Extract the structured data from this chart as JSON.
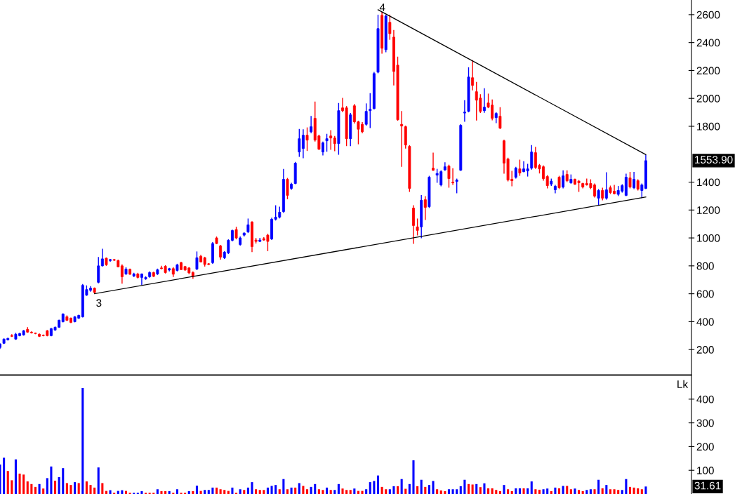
{
  "chart_data": [
    {
      "type": "candlestick",
      "categories": [
        null,
        null,
        null,
        null,
        null,
        null,
        null,
        null,
        null,
        null,
        null,
        null,
        null,
        null,
        null,
        null,
        null,
        null,
        null,
        null,
        null,
        null,
        null,
        null,
        null,
        null,
        null,
        null,
        null,
        null,
        null,
        null,
        null,
        null,
        null,
        null,
        null,
        null,
        null,
        null,
        null,
        null,
        null,
        null,
        null,
        null,
        null,
        null,
        null,
        null,
        null,
        null,
        null,
        null,
        null,
        null,
        null,
        null,
        null,
        null,
        null,
        null,
        null,
        null,
        null,
        null,
        null,
        null,
        null,
        null,
        null,
        null,
        null,
        null,
        null,
        null,
        null,
        null,
        null,
        null,
        null,
        null,
        null,
        null,
        null,
        null,
        null,
        null,
        null,
        null,
        null,
        null,
        null,
        null,
        null,
        null,
        null,
        null,
        null,
        null,
        null,
        null,
        null,
        null,
        null,
        null,
        null,
        null,
        null,
        null,
        null,
        null,
        null,
        null,
        null,
        null,
        null,
        null,
        null,
        null,
        null,
        null,
        null,
        null,
        null,
        null,
        null,
        null,
        null,
        null,
        null,
        null,
        null,
        null,
        null,
        null,
        null,
        null,
        null,
        null,
        null,
        null,
        null,
        null,
        null,
        null,
        null,
        null,
        null,
        null,
        null,
        null,
        null,
        null,
        null,
        null,
        null,
        null,
        null,
        null,
        null,
        null,
        null,
        null,
        null
      ],
      "ohlc": [
        [
          215,
          245,
          205,
          240
        ],
        [
          245,
          280,
          240,
          275
        ],
        [
          270,
          285,
          265,
          280
        ],
        [
          300,
          310,
          290,
          295
        ],
        [
          275,
          320,
          270,
          310
        ],
        [
          300,
          320,
          295,
          315
        ],
        [
          305,
          340,
          300,
          335
        ],
        [
          345,
          360,
          320,
          325
        ],
        [
          325,
          330,
          315,
          320
        ],
        [
          318,
          322,
          310,
          315
        ],
        [
          310,
          315,
          290,
          295
        ],
        [
          303,
          308,
          295,
          300
        ],
        [
          335,
          340,
          295,
          300
        ],
        [
          300,
          355,
          295,
          350
        ],
        [
          340,
          365,
          335,
          360
        ],
        [
          360,
          415,
          355,
          410
        ],
        [
          400,
          460,
          395,
          455
        ],
        [
          435,
          445,
          405,
          410
        ],
        [
          425,
          430,
          390,
          395
        ],
        [
          400,
          440,
          395,
          435
        ],
        [
          425,
          450,
          420,
          445
        ],
        [
          435,
          670,
          430,
          660
        ],
        [
          590,
          660,
          585,
          630
        ],
        [
          625,
          655,
          615,
          640
        ],
        [
          640,
          645,
          600,
          610
        ],
        [
          682,
          863,
          675,
          800
        ],
        [
          800,
          923,
          795,
          850
        ],
        [
          855,
          860,
          800,
          808
        ],
        [
          838,
          850,
          830,
          845
        ],
        [
          845,
          850,
          835,
          840
        ],
        [
          838,
          845,
          790,
          793
        ],
        [
          800,
          810,
          672,
          722
        ],
        [
          742,
          790,
          735,
          777
        ],
        [
          775,
          780,
          735,
          740
        ],
        [
          727,
          750,
          720,
          742
        ],
        [
          742,
          750,
          710,
          717
        ],
        [
          717,
          745,
          662,
          742
        ],
        [
          707,
          725,
          700,
          717
        ],
        [
          722,
          760,
          715,
          752
        ],
        [
          752,
          758,
          720,
          725
        ],
        [
          742,
          780,
          735,
          772
        ],
        [
          785,
          800,
          775,
          780
        ],
        [
          797,
          805,
          745,
          752
        ],
        [
          770,
          785,
          760,
          780
        ],
        [
          780,
          790,
          720,
          740
        ],
        [
          767,
          815,
          760,
          807
        ],
        [
          823,
          830,
          770,
          773
        ],
        [
          795,
          800,
          765,
          770
        ],
        [
          785,
          790,
          740,
          750
        ],
        [
          752,
          760,
          707,
          725
        ],
        [
          777,
          903,
          770,
          858
        ],
        [
          868,
          880,
          825,
          828
        ],
        [
          858,
          865,
          795,
          810
        ],
        [
          815,
          820,
          805,
          810
        ],
        [
          823,
          970,
          815,
          960
        ],
        [
          1000,
          1010,
          955,
          960
        ],
        [
          943,
          950,
          845,
          863
        ],
        [
          858,
          905,
          850,
          898
        ],
        [
          893,
          990,
          885,
          983
        ],
        [
          983,
          1060,
          975,
          1053
        ],
        [
          1060,
          1080,
          990,
          1000
        ],
        [
          953,
          1010,
          945,
          1000
        ],
        [
          1020,
          1040,
          1010,
          1035
        ],
        [
          1044,
          1139,
          1035,
          1094
        ],
        [
          1114,
          1120,
          898,
          938
        ],
        [
          985,
          1000,
          960,
          975
        ],
        [
          975,
          1000,
          970,
          985
        ],
        [
          995,
          1005,
          980,
          985
        ],
        [
          1020,
          1030,
          905,
          975
        ],
        [
          993,
          1145,
          985,
          1134
        ],
        [
          1134,
          1234,
          1125,
          1149
        ],
        [
          1149,
          1224,
          1140,
          1184
        ],
        [
          1189,
          1495,
          1180,
          1420
        ],
        [
          1420,
          1430,
          1277,
          1305
        ],
        [
          1355,
          1395,
          1345,
          1385
        ],
        [
          1390,
          1545,
          1385,
          1536
        ],
        [
          1616,
          1781,
          1581,
          1711
        ],
        [
          1641,
          1779,
          1571,
          1736
        ],
        [
          1736,
          1792,
          1623,
          1701
        ],
        [
          1761,
          1874,
          1750,
          1797
        ],
        [
          1857,
          1977,
          1690,
          1701
        ],
        [
          1731,
          1740,
          1630,
          1636
        ],
        [
          1616,
          1690,
          1591,
          1681
        ],
        [
          1696,
          1746,
          1618,
          1711
        ],
        [
          1731,
          1772,
          1631,
          1716
        ],
        [
          1716,
          1731,
          1621,
          1676
        ],
        [
          1676,
          1967,
          1596,
          1912
        ],
        [
          1932,
          2003,
          1900,
          1912
        ],
        [
          1932,
          1945,
          1658,
          1711
        ],
        [
          1711,
          1895,
          1658,
          1882
        ],
        [
          1947,
          1960,
          1820,
          1832
        ],
        [
          1832,
          1840,
          1671,
          1779
        ],
        [
          1814,
          1830,
          1750,
          1761
        ],
        [
          1814,
          1964,
          1805,
          1907
        ],
        [
          1912,
          2038,
          1787,
          1922
        ],
        [
          1927,
          2190,
          1920,
          2178
        ],
        [
          2188,
          2600,
          2180,
          2500
        ],
        [
          2595,
          2620,
          2320,
          2359
        ],
        [
          2349,
          2600,
          2330,
          2590
        ],
        [
          2545,
          2600,
          2420,
          2464
        ],
        [
          2439,
          2490,
          2093,
          2193
        ],
        [
          2238,
          2299,
          1840,
          1847
        ],
        [
          1814,
          1909,
          1510,
          1802
        ],
        [
          1797,
          1805,
          1640,
          1666
        ],
        [
          1656,
          1665,
          1330,
          1355
        ],
        [
          1214,
          1234,
          958,
          1089
        ],
        [
          1079,
          1139,
          1018,
          1054
        ],
        [
          1079,
          1307,
          998,
          1270
        ],
        [
          1274,
          1300,
          1129,
          1219
        ],
        [
          1224,
          1445,
          1215,
          1435
        ],
        [
          1500,
          1611,
          1480,
          1485
        ],
        [
          1450,
          1495,
          1395,
          1462
        ],
        [
          1380,
          1485,
          1370,
          1475
        ],
        [
          1488,
          1542,
          1480,
          1510
        ],
        [
          1515,
          1525,
          1360,
          1425
        ],
        [
          1400,
          1500,
          1380,
          1395
        ],
        [
          1405,
          1425,
          1320,
          1415
        ],
        [
          1485,
          1815,
          1480,
          1807
        ],
        [
          1895,
          1987,
          1832,
          1902
        ],
        [
          1907,
          2223,
          1900,
          2153
        ],
        [
          2148,
          2274,
          2058,
          2093
        ],
        [
          2048,
          2118,
          1842,
          1987
        ],
        [
          2002,
          2030,
          1895,
          1907
        ],
        [
          1912,
          2073,
          1897,
          1937
        ],
        [
          1967,
          2034,
          1930,
          1937
        ],
        [
          1952,
          1992,
          1843,
          1857
        ],
        [
          1862,
          1900,
          1822,
          1892
        ],
        [
          1872,
          1937,
          1780,
          1787
        ],
        [
          1696,
          1705,
          1460,
          1536
        ],
        [
          1566,
          1575,
          1405,
          1415
        ],
        [
          1420,
          1480,
          1370,
          1410
        ],
        [
          1435,
          1510,
          1425,
          1500
        ],
        [
          1495,
          1561,
          1445,
          1465
        ],
        [
          1475,
          1550,
          1470,
          1495
        ],
        [
          1480,
          1531,
          1440,
          1495
        ],
        [
          1500,
          1666,
          1490,
          1616
        ],
        [
          1611,
          1653,
          1495,
          1505
        ],
        [
          1520,
          1530,
          1462,
          1495
        ],
        [
          1510,
          1520,
          1410,
          1425
        ],
        [
          1440,
          1450,
          1355,
          1375
        ],
        [
          1386,
          1425,
          1372,
          1407
        ],
        [
          1345,
          1380,
          1320,
          1370
        ],
        [
          1435,
          1445,
          1350,
          1360
        ],
        [
          1365,
          1485,
          1355,
          1445
        ],
        [
          1455,
          1485,
          1400,
          1410
        ],
        [
          1395,
          1455,
          1388,
          1420
        ],
        [
          1420,
          1425,
          1380,
          1385
        ],
        [
          1407,
          1415,
          1330,
          1395
        ],
        [
          1390,
          1395,
          1355,
          1365
        ],
        [
          1390,
          1425,
          1375,
          1380
        ],
        [
          1390,
          1420,
          1350,
          1360
        ],
        [
          1380,
          1390,
          1290,
          1300
        ],
        [
          1285,
          1350,
          1235,
          1340
        ],
        [
          1340,
          1360,
          1270,
          1285
        ],
        [
          1285,
          1470,
          1275,
          1345
        ],
        [
          1360,
          1375,
          1315,
          1325
        ],
        [
          1335,
          1380,
          1312,
          1317
        ],
        [
          1312,
          1372,
          1300,
          1340
        ],
        [
          1335,
          1385,
          1325,
          1375
        ],
        [
          1305,
          1460,
          1300,
          1435
        ],
        [
          1430,
          1473,
          1355,
          1365
        ],
        [
          1360,
          1473,
          1350,
          1420
        ],
        [
          1410,
          1420,
          1340,
          1350
        ],
        [
          1340,
          1390,
          1285,
          1380
        ],
        [
          1355,
          1596,
          1350,
          1553.9
        ]
      ],
      "colors": [
        "#0000ff",
        "#0000ff",
        "#0000ff",
        "#ff0000",
        "#0000ff",
        "#0000ff",
        "#0000ff",
        "#ff0000",
        "#ff0000",
        "#ff0000",
        "#ff0000",
        "#ff0000",
        "#ff0000",
        "#0000ff",
        "#0000ff",
        "#0000ff",
        "#0000ff",
        "#ff0000",
        "#ff0000",
        "#0000ff",
        "#0000ff",
        "#0000ff",
        "#0000ff",
        "#0000ff",
        "#ff0000",
        "#0000ff",
        "#0000ff",
        "#ff0000",
        "#0000ff",
        "#ff0000",
        "#ff0000",
        "#ff0000",
        "#0000ff",
        "#ff0000",
        "#0000ff",
        "#ff0000",
        "#0000ff",
        "#0000ff",
        "#0000ff",
        "#ff0000",
        "#0000ff",
        "#ff0000",
        "#ff0000",
        "#0000ff",
        "#ff0000",
        "#0000ff",
        "#ff0000",
        "#ff0000",
        "#ff0000",
        "#ff0000",
        "#0000ff",
        "#ff0000",
        "#ff0000",
        "#ff0000",
        "#0000ff",
        "#ff0000",
        "#ff0000",
        "#0000ff",
        "#0000ff",
        "#0000ff",
        "#ff0000",
        "#0000ff",
        "#0000ff",
        "#0000ff",
        "#ff0000",
        "#ff0000",
        "#0000ff",
        "#ff0000",
        "#ff0000",
        "#0000ff",
        "#0000ff",
        "#0000ff",
        "#0000ff",
        "#ff0000",
        "#0000ff",
        "#0000ff",
        "#0000ff",
        "#0000ff",
        "#ff0000",
        "#0000ff",
        "#ff0000",
        "#ff0000",
        "#0000ff",
        "#0000ff",
        "#ff0000",
        "#ff0000",
        "#0000ff",
        "#ff0000",
        "#ff0000",
        "#0000ff",
        "#ff0000",
        "#ff0000",
        "#ff0000",
        "#0000ff",
        "#0000ff",
        "#0000ff",
        "#0000ff",
        "#ff0000",
        "#0000ff",
        "#ff0000",
        "#ff0000",
        "#ff0000",
        "#ff0000",
        "#ff0000",
        "#ff0000",
        "#ff0000",
        "#ff0000",
        "#0000ff",
        "#ff0000",
        "#0000ff",
        "#ff0000",
        "#0000ff",
        "#0000ff",
        "#0000ff",
        "#ff0000",
        "#ff0000",
        "#0000ff",
        "#0000ff",
        "#0000ff",
        "#0000ff",
        "#ff0000",
        "#ff0000",
        "#ff0000",
        "#0000ff",
        "#ff0000",
        "#ff0000",
        "#0000ff",
        "#ff0000",
        "#ff0000",
        "#ff0000",
        "#ff0000",
        "#0000ff",
        "#ff0000",
        "#0000ff",
        "#0000ff",
        "#0000ff",
        "#ff0000",
        "#ff0000",
        "#ff0000",
        "#ff0000",
        "#0000ff",
        "#0000ff",
        "#ff0000",
        "#0000ff",
        "#ff0000",
        "#0000ff",
        "#ff0000",
        "#ff0000",
        "#ff0000",
        "#ff0000",
        "#ff0000",
        "#ff0000",
        "#0000ff",
        "#ff0000",
        "#0000ff",
        "#ff0000",
        "#ff0000",
        "#0000ff",
        "#0000ff",
        "#0000ff",
        "#ff0000",
        "#0000ff",
        "#ff0000",
        "#0000ff",
        "#0000ff"
      ],
      "series": [
        {
          "type": "line",
          "values": [
            null,
            null,
            null,
            null,
            null,
            null,
            null,
            null,
            null,
            null,
            null,
            null,
            null,
            null,
            null,
            null,
            null,
            null,
            null,
            null,
            null,
            null,
            null,
            null,
            600,
            null,
            null,
            null,
            null,
            null,
            null,
            null,
            null,
            null,
            null,
            null,
            null,
            null,
            null,
            null,
            null,
            null,
            null,
            null,
            null,
            null,
            null,
            null,
            null,
            null,
            null,
            null,
            null,
            null,
            null,
            null,
            null,
            null,
            null,
            null,
            null,
            null,
            null,
            null,
            null,
            null,
            null,
            null,
            null,
            null,
            null,
            null,
            null,
            null,
            null,
            null,
            null,
            null,
            null,
            null,
            null,
            null,
            null,
            null,
            null,
            null,
            null,
            null,
            null,
            null,
            null,
            null,
            null,
            null,
            null,
            null,
            null,
            null,
            null,
            null,
            null,
            null,
            null,
            null,
            null,
            null,
            null,
            null,
            null,
            null,
            null,
            null,
            null,
            null,
            null,
            null,
            null,
            null,
            null,
            null,
            null,
            null,
            null,
            null,
            null,
            null,
            null,
            null,
            null,
            null,
            null,
            null,
            null,
            null,
            null,
            null,
            null,
            null,
            null,
            null,
            null,
            null,
            null,
            null,
            null,
            null,
            null,
            null,
            null,
            null,
            null,
            null,
            null,
            null,
            null,
            null,
            null,
            null,
            null,
            null,
            null,
            null,
            null,
            null,
            1293
          ],
          "color": "#000000"
        },
        {
          "type": "line",
          "values": [
            null,
            null,
            null,
            null,
            null,
            null,
            null,
            null,
            null,
            null,
            null,
            null,
            null,
            null,
            null,
            null,
            null,
            null,
            null,
            null,
            null,
            null,
            null,
            null,
            null,
            null,
            null,
            null,
            null,
            null,
            null,
            null,
            null,
            null,
            null,
            null,
            null,
            null,
            null,
            null,
            null,
            null,
            null,
            null,
            null,
            null,
            null,
            null,
            null,
            null,
            null,
            null,
            null,
            null,
            null,
            null,
            null,
            null,
            null,
            null,
            null,
            null,
            null,
            null,
            null,
            null,
            null,
            null,
            null,
            null,
            null,
            null,
            null,
            null,
            null,
            null,
            null,
            null,
            null,
            null,
            null,
            null,
            null,
            null,
            null,
            null,
            null,
            null,
            null,
            null,
            null,
            null,
            null,
            null,
            null,
            null,
            2635,
            null,
            null,
            null,
            null,
            null,
            null,
            null,
            null,
            null,
            null,
            null,
            null,
            null,
            null,
            null,
            null,
            null,
            null,
            null,
            null,
            null,
            null,
            null,
            null,
            null,
            null,
            null,
            null,
            null,
            null,
            null,
            null,
            null,
            null,
            null,
            null,
            null,
            null,
            null,
            null,
            null,
            null,
            null,
            null,
            null,
            null,
            null,
            null,
            null,
            null,
            null,
            null,
            null,
            null,
            null,
            null,
            null,
            null,
            null,
            null,
            null,
            null,
            null,
            null,
            null,
            null,
            null,
            1597
          ],
          "color": "#000000"
        }
      ],
      "annotations": [
        "3",
        "4",
        "1553.90"
      ],
      "ylim": [
        20,
        2705
      ],
      "yticks": [
        200,
        400,
        600,
        800,
        1000,
        1200,
        1400,
        1800,
        2000,
        2200,
        2400,
        2600
      ],
      "tick_labels": "y",
      "grid": false,
      "legend": false
    },
    {
      "type": "bar",
      "categories": [
        null,
        null,
        null,
        null,
        null,
        null,
        null,
        null,
        null,
        null,
        null,
        null,
        null,
        null,
        null,
        null,
        null,
        null,
        null,
        null,
        null,
        null,
        null,
        null,
        null,
        null,
        null,
        null,
        null,
        null,
        null,
        null,
        null,
        null,
        null,
        null,
        null,
        null,
        null,
        null,
        null,
        null,
        null,
        null,
        null,
        null,
        null,
        null,
        null,
        null,
        null,
        null,
        null,
        null,
        null,
        null,
        null,
        null,
        null,
        null,
        null,
        null,
        null,
        null,
        null,
        null,
        null,
        null,
        null,
        null,
        null,
        null,
        null,
        null,
        null,
        null,
        null,
        null,
        null,
        null,
        null,
        null,
        null,
        null,
        null,
        null,
        null,
        null,
        null,
        null,
        null,
        null,
        null,
        null,
        null,
        null,
        null,
        null,
        null,
        null,
        null,
        null,
        null,
        null,
        null,
        null,
        null,
        null,
        null,
        null,
        null,
        null,
        null,
        null,
        null,
        null,
        null,
        null,
        null,
        null,
        null,
        null,
        null,
        null,
        null,
        null,
        null,
        null,
        null,
        null,
        null,
        null,
        null,
        null,
        null,
        null,
        null,
        null,
        null,
        null,
        null,
        null,
        null,
        null,
        null,
        null,
        null,
        null,
        null,
        null,
        null,
        null,
        null,
        null,
        null,
        null,
        null,
        null,
        null,
        null,
        null,
        null,
        null,
        null,
        null
      ],
      "values": [
        124,
        153,
        97,
        58,
        146,
        86,
        82,
        53,
        42,
        30,
        42,
        23,
        67,
        116,
        56,
        71,
        109,
        46,
        38,
        50,
        46,
        447,
        53,
        38,
        27,
        112,
        46,
        13,
        16,
        5,
        13,
        16,
        13,
        5,
        5,
        5,
        12,
        5,
        5,
        5,
        20,
        12,
        12,
        12,
        5,
        20,
        5,
        5,
        12,
        12,
        35,
        13,
        17,
        17,
        27,
        27,
        20,
        17,
        13,
        27,
        5,
        20,
        17,
        27,
        50,
        20,
        17,
        17,
        27,
        34,
        38,
        20,
        63,
        20,
        27,
        27,
        46,
        34,
        20,
        30,
        42,
        20,
        17,
        27,
        17,
        17,
        42,
        23,
        17,
        17,
        23,
        13,
        13,
        20,
        50,
        55,
        78,
        30,
        20,
        20,
        33,
        33,
        63,
        22,
        42,
        142,
        33,
        60,
        30,
        38,
        55,
        20,
        15,
        12,
        20,
        20,
        20,
        33,
        60,
        42,
        40,
        42,
        29,
        45,
        24,
        24,
        17,
        12,
        38,
        20,
        12,
        24,
        24,
        24,
        24,
        53,
        20,
        18,
        20,
        23,
        12,
        27,
        24,
        34,
        34,
        20,
        23,
        17,
        12,
        17,
        20,
        20,
        60,
        24,
        38,
        20,
        20,
        17,
        17,
        63,
        30,
        27,
        24,
        20,
        31.61
      ],
      "colors": [
        "#0000ff",
        "#0000ff",
        "#ff0000",
        "#ff0000",
        "#0000ff",
        "#ff0000",
        "#ff0000",
        "#ff0000",
        "#ff0000",
        "#ff0000",
        "#0000ff",
        "#ff0000",
        "#0000ff",
        "#0000ff",
        "#ff0000",
        "#0000ff",
        "#0000ff",
        "#ff0000",
        "#ff0000",
        "#0000ff",
        "#ff0000",
        "#0000ff",
        "#ff0000",
        "#ff0000",
        "#ff0000",
        "#0000ff",
        "#ff0000",
        "#ff0000",
        "#0000ff",
        "#ff0000",
        "#0000ff",
        "#0000ff",
        "#ff0000",
        "#ff0000",
        "#0000ff",
        "#0000ff",
        "#0000ff",
        "#ff0000",
        "#ff0000",
        "#ff0000",
        "#0000ff",
        "#ff0000",
        "#ff0000",
        "#0000ff",
        "#ff0000",
        "#0000ff",
        "#ff0000",
        "#ff0000",
        "#0000ff",
        "#ff0000",
        "#0000ff",
        "#ff0000",
        "#0000ff",
        "#0000ff",
        "#0000ff",
        "#ff0000",
        "#ff0000",
        "#ff0000",
        "#ff0000",
        "#0000ff",
        "#ff0000",
        "#0000ff",
        "#ff0000",
        "#0000ff",
        "#0000ff",
        "#ff0000",
        "#ff0000",
        "#ff0000",
        "#0000ff",
        "#0000ff",
        "#0000ff",
        "#ff0000",
        "#0000ff",
        "#ff0000",
        "#0000ff",
        "#ff0000",
        "#0000ff",
        "#ff0000",
        "#ff0000",
        "#0000ff",
        "#0000ff",
        "#ff0000",
        "#ff0000",
        "#0000ff",
        "#ff0000",
        "#0000ff",
        "#0000ff",
        "#ff0000",
        "#ff0000",
        "#ff0000",
        "#0000ff",
        "#ff0000",
        "#ff0000",
        "#0000ff",
        "#0000ff",
        "#0000ff",
        "#0000ff",
        "#ff0000",
        "#ff0000",
        "#0000ff",
        "#0000ff",
        "#ff0000",
        "#0000ff",
        "#ff0000",
        "#0000ff",
        "#0000ff",
        "#ff0000",
        "#0000ff",
        "#ff0000",
        "#0000ff",
        "#0000ff",
        "#ff0000",
        "#ff0000",
        "#ff0000",
        "#0000ff",
        "#0000ff",
        "#0000ff",
        "#0000ff",
        "#0000ff",
        "#ff0000",
        "#ff0000",
        "#0000ff",
        "#ff0000",
        "#0000ff",
        "#ff0000",
        "#ff0000",
        "#ff0000",
        "#ff0000",
        "#0000ff",
        "#ff0000",
        "#ff0000",
        "#0000ff",
        "#0000ff",
        "#ff0000",
        "#0000ff",
        "#0000ff",
        "#ff0000",
        "#ff0000",
        "#0000ff",
        "#0000ff",
        "#ff0000",
        "#0000ff",
        "#ff0000",
        "#0000ff",
        "#ff0000",
        "#ff0000",
        "#0000ff",
        "#ff0000",
        "#ff0000",
        "#0000ff",
        "#0000ff",
        "#ff0000",
        "#0000ff",
        "#ff0000",
        "#0000ff",
        "#ff0000",
        "#ff0000",
        "#ff0000",
        "#0000ff",
        "#0000ff",
        "#ff0000",
        "#ff0000",
        "#ff0000",
        "#ff0000",
        "#0000ff"
      ],
      "ylabel": "Lk",
      "annotations": [
        "31.61"
      ],
      "ylim": [
        0,
        500
      ],
      "yticks": [
        100,
        200,
        300,
        400
      ],
      "tick_labels": "y",
      "grid": false,
      "legend": false
    }
  ]
}
